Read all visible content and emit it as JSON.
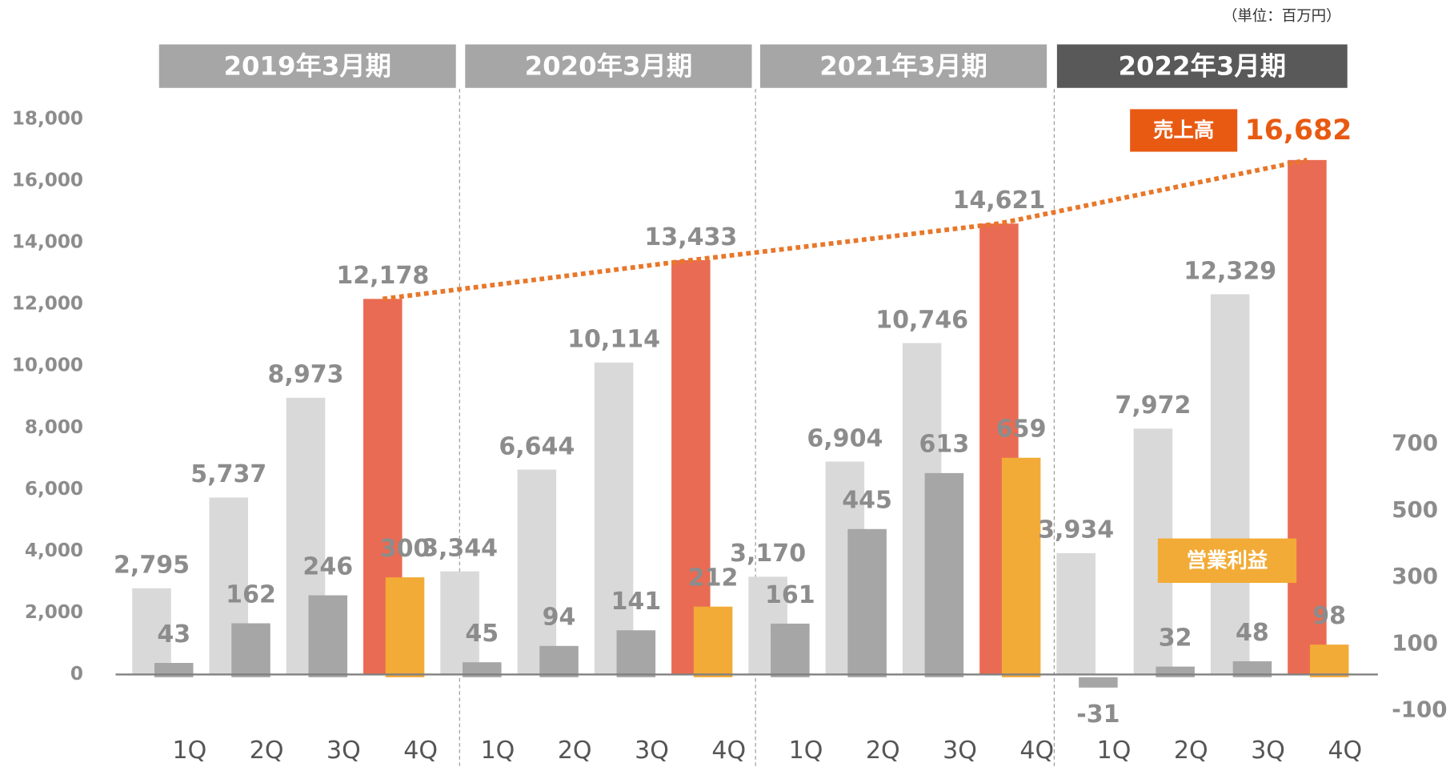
{
  "chart_data": {
    "type": "bar",
    "unit": "（単位：百万円）",
    "periods": [
      "2019年3月期",
      "2020年3月期",
      "2021年3月期",
      "2022年3月期"
    ],
    "period_colors": [
      "#a6a6a6",
      "#a6a6a6",
      "#a6a6a6",
      "#595959"
    ],
    "categories": [
      "1Q",
      "2Q",
      "3Q",
      "4Q",
      "1Q",
      "2Q",
      "3Q",
      "4Q",
      "1Q",
      "2Q",
      "3Q",
      "4Q",
      "1Q",
      "2Q",
      "3Q",
      "4Q"
    ],
    "series": [
      {
        "name": "売上高",
        "color": "#e85a12",
        "colors": [
          "#d9d9d9",
          "#d9d9d9",
          "#d9d9d9",
          "#ea6b53",
          "#d9d9d9",
          "#d9d9d9",
          "#d9d9d9",
          "#ea6b53",
          "#d9d9d9",
          "#d9d9d9",
          "#d9d9d9",
          "#ea6b53",
          "#d9d9d9",
          "#d9d9d9",
          "#d9d9d9",
          "#ea6b53"
        ],
        "values": [
          2795,
          5737,
          8973,
          12178,
          3344,
          6644,
          10114,
          13433,
          3170,
          6904,
          10746,
          14621,
          3934,
          7972,
          12329,
          16682
        ],
        "value_labels": [
          "2,795",
          "5,737",
          "8,973",
          "12,178",
          "3,344",
          "6,644",
          "10,114",
          "13,433",
          "3,170",
          "6,904",
          "10,746",
          "14,621",
          "3,934",
          "7,972",
          "12,329",
          "16,682"
        ]
      },
      {
        "name": "営業利益",
        "color": "#f2ab36",
        "axis": "y2",
        "colors": [
          "#a6a6a6",
          "#a6a6a6",
          "#a6a6a6",
          "#f2ab36",
          "#a6a6a6",
          "#a6a6a6",
          "#a6a6a6",
          "#f2ab36",
          "#a6a6a6",
          "#a6a6a6",
          "#a6a6a6",
          "#f2ab36",
          "#a6a6a6",
          "#a6a6a6",
          "#a6a6a6",
          "#f2ab36"
        ],
        "values": [
          43,
          162,
          246,
          300,
          45,
          94,
          141,
          212,
          161,
          445,
          613,
          659,
          -31,
          32,
          48,
          98
        ]
      }
    ],
    "trend_color": "#e8772a",
    "ylim": [
      0,
      18000
    ],
    "yticks": [
      {
        "value": 0,
        "label": "0"
      },
      {
        "value": 2000,
        "label": "2,000"
      },
      {
        "value": 4000,
        "label": "4,000"
      },
      {
        "value": 6000,
        "label": "6,000"
      },
      {
        "value": 8000,
        "label": "8,000"
      },
      {
        "value": 10000,
        "label": "10,000"
      },
      {
        "value": 12000,
        "label": "12,000"
      },
      {
        "value": 14000,
        "label": "14,000"
      },
      {
        "value": 16000,
        "label": "16,000"
      },
      {
        "value": 18000,
        "label": "18,000"
      }
    ],
    "y2lim": [
      -100,
      700
    ],
    "y2ticks": [
      -100,
      100,
      300,
      500,
      700
    ]
  }
}
